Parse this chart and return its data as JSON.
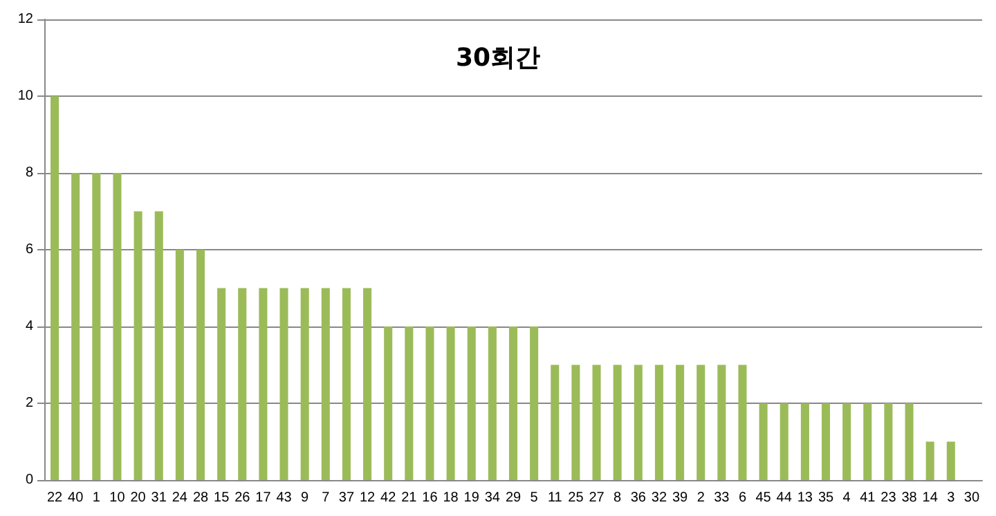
{
  "chart_data": {
    "type": "bar",
    "title": "30회간",
    "categories": [
      "22",
      "40",
      "1",
      "10",
      "20",
      "31",
      "24",
      "28",
      "15",
      "26",
      "17",
      "43",
      "9",
      "7",
      "37",
      "12",
      "42",
      "21",
      "16",
      "18",
      "19",
      "34",
      "29",
      "5",
      "11",
      "25",
      "27",
      "8",
      "36",
      "32",
      "39",
      "2",
      "33",
      "6",
      "45",
      "44",
      "13",
      "35",
      "4",
      "41",
      "23",
      "38",
      "14",
      "3",
      "30"
    ],
    "values": [
      10,
      8,
      8,
      8,
      7,
      7,
      6,
      6,
      5,
      5,
      5,
      5,
      5,
      5,
      5,
      5,
      4,
      4,
      4,
      4,
      4,
      4,
      4,
      4,
      3,
      3,
      3,
      3,
      3,
      3,
      3,
      3,
      3,
      3,
      2,
      2,
      2,
      2,
      2,
      2,
      2,
      2,
      1,
      1,
      0
    ],
    "color": "#9bbb59",
    "ylim": [
      0,
      12
    ],
    "yticks": [
      0,
      2,
      4,
      6,
      8,
      10,
      12
    ],
    "grid": "y"
  }
}
